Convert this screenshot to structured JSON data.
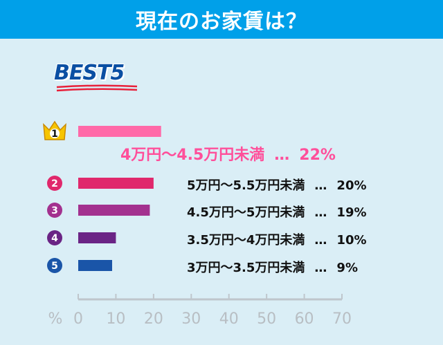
{
  "header": {
    "title": "現在のお家賃は？"
  },
  "badge": {
    "text": "BEST5"
  },
  "chart_data": {
    "type": "bar",
    "orientation": "horizontal",
    "xlabel": "%",
    "xlim": [
      0,
      70
    ],
    "xticks": [
      "0",
      "10",
      "20",
      "30",
      "40",
      "50",
      "60",
      "70"
    ],
    "categories": [
      "4万円〜4.5万円未満",
      "5万円〜5.5万円未満",
      "4.5万円〜5万円未満",
      "3.5万円〜4万円未満",
      "3万円〜3.5万円未満"
    ],
    "ranks": [
      "1",
      "2",
      "3",
      "4",
      "5"
    ],
    "values": [
      22,
      20,
      19,
      10,
      9
    ],
    "value_labels": [
      "22%",
      "20%",
      "19%",
      "10%",
      "9%"
    ],
    "separator": "…",
    "colors": [
      "#ff69a8",
      "#e0286c",
      "#a3318f",
      "#6a2485",
      "#1a55a8"
    ],
    "rank_icon_colors": [
      "#f7c500",
      "#e0286c",
      "#a3318f",
      "#6a2485",
      "#1a55a8"
    ],
    "grid": false
  }
}
